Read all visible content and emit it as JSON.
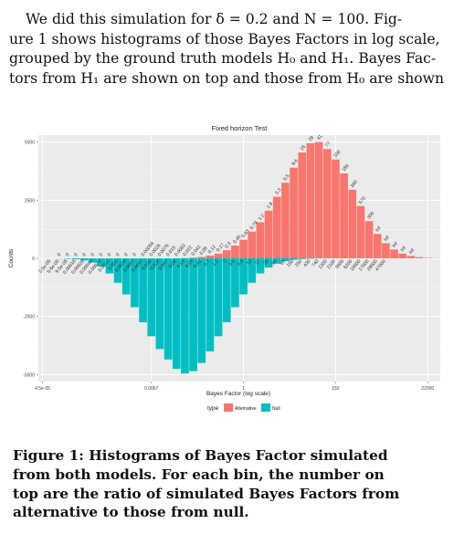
{
  "paragraph": {
    "lines": [
      "We did this simulation for δ = 0.2 and N = 100.  Fig-",
      "ure 1 shows histograms of those Bayes Factors in log scale,",
      "grouped by the ground truth models H₀ and H₁. Bayes Fac-",
      "tors from H₁ are shown on top and those from H₀ are shown"
    ]
  },
  "chart_data": {
    "type": "bar",
    "title": "Fixed horizon Test",
    "xlabel": "Bayes Factor (log scale)",
    "ylabel": "Counts",
    "ylim": [
      -5300,
      5300
    ],
    "yticks": [
      5000,
      2500,
      0,
      -2500,
      -5000
    ],
    "ytick_labels": [
      "5000",
      "2500",
      "0",
      "-2500",
      "-5000"
    ],
    "xtick_labels": [
      "4.5e-05",
      "0.0067",
      "1",
      "150",
      "22000"
    ],
    "xtick_bins": [
      0,
      13,
      24,
      35,
      46
    ],
    "grid": true,
    "legend": {
      "title": "type",
      "placement": "bottom",
      "entries": [
        "Alternative",
        "Null"
      ]
    },
    "colors": {
      "Alternative": "#F8766D",
      "Null": "#00BFC4"
    },
    "series": [
      {
        "name": "Alternative",
        "values": [
          0,
          0,
          0,
          0,
          0,
          0,
          0,
          0,
          0,
          0,
          0,
          0,
          0,
          0,
          0,
          0,
          5,
          10,
          30,
          60,
          120,
          200,
          350,
          550,
          800,
          1150,
          1550,
          2050,
          2650,
          3250,
          3900,
          4550,
          4950,
          5000,
          4700,
          4250,
          3650,
          2950,
          2250,
          1600,
          1050,
          650,
          380,
          200,
          100,
          50,
          20,
          8
        ]
      },
      {
        "name": "Null",
        "values": [
          -1,
          -3,
          -8,
          -20,
          -40,
          -90,
          -180,
          -350,
          -650,
          -1050,
          -1550,
          -2100,
          -2750,
          -3350,
          -3900,
          -4350,
          -4750,
          -4950,
          -4850,
          -4500,
          -4000,
          -3350,
          -2750,
          -2100,
          -1550,
          -1050,
          -650,
          -400,
          -230,
          -120,
          -60,
          -30,
          -15,
          -6,
          -3,
          -1,
          0,
          0,
          0,
          0,
          0,
          0,
          0,
          0,
          0,
          0,
          0,
          0
        ]
      }
    ],
    "top_labels": [
      "0",
      "0",
      "0",
      "0",
      "0",
      "0",
      "0",
      "0",
      "0",
      "0",
      "0.00059",
      "0.0026",
      "0.0076",
      "0.015",
      "0.0082",
      "0.022",
      "0.042",
      "0.08",
      "0.12",
      "0.17",
      "0.3",
      "0.45",
      "0.63",
      "0.79",
      "1.2",
      "1.9",
      "3.3",
      "5.5",
      "9.6",
      "16",
      "28",
      "41",
      "77",
      "100",
      "180",
      "380",
      "570",
      "300",
      "Inf",
      "Inf",
      "Inf",
      "Inf",
      "Inf"
    ],
    "bottom_labels": [
      "3.5e-05",
      "5.6e-05",
      "9.5e-05",
      "0.00016",
      "0.00028",
      "0.00043",
      "0.00073",
      "0.0012",
      "0.002",
      "0.0034",
      "0.0057",
      "0.0097",
      "0.016",
      "0.028",
      "0.047",
      "0.08",
      "0.14",
      "0.24",
      "0.41",
      "0.7",
      "1.2",
      "2",
      "3.5",
      "5.9",
      "10",
      "17",
      "29",
      "50",
      "86",
      "150",
      "250",
      "430",
      "740",
      "1300",
      "2100",
      "3600",
      "6200",
      "10000",
      "17000",
      "29000",
      "47000"
    ]
  },
  "caption": {
    "lines": [
      "Figure 1:  Histograms of Bayes Factor simulated",
      "from both models.  For each bin, the number on",
      "top are the ratio of simulated Bayes Factors from",
      "alternative to those from null."
    ]
  }
}
